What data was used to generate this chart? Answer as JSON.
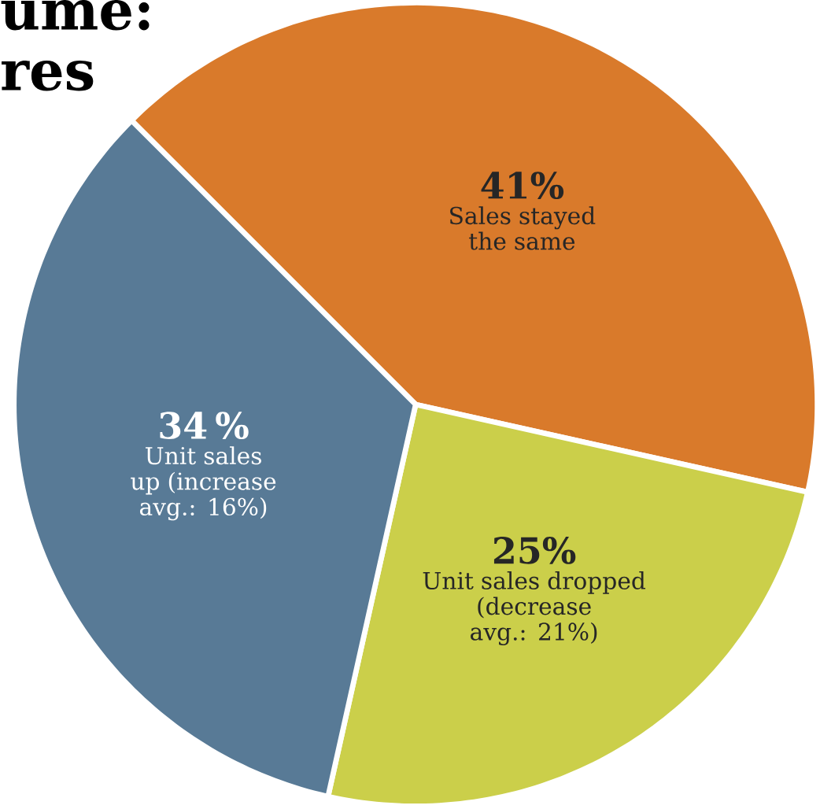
{
  "chart_data": {
    "type": "pie",
    "title": "ume:",
    "subtitle": "res",
    "categories": [
      "Sales stayed the same",
      "Unit sales dropped (decrease avg.: 21%)",
      "Unit sales up (increase avg.: 16%)"
    ],
    "values": [
      41,
      25,
      34
    ],
    "value_labels": [
      "41%",
      "25%",
      "34 %"
    ],
    "colors": [
      "#d97a2b",
      "#cbcf4a",
      "#587a96"
    ]
  }
}
